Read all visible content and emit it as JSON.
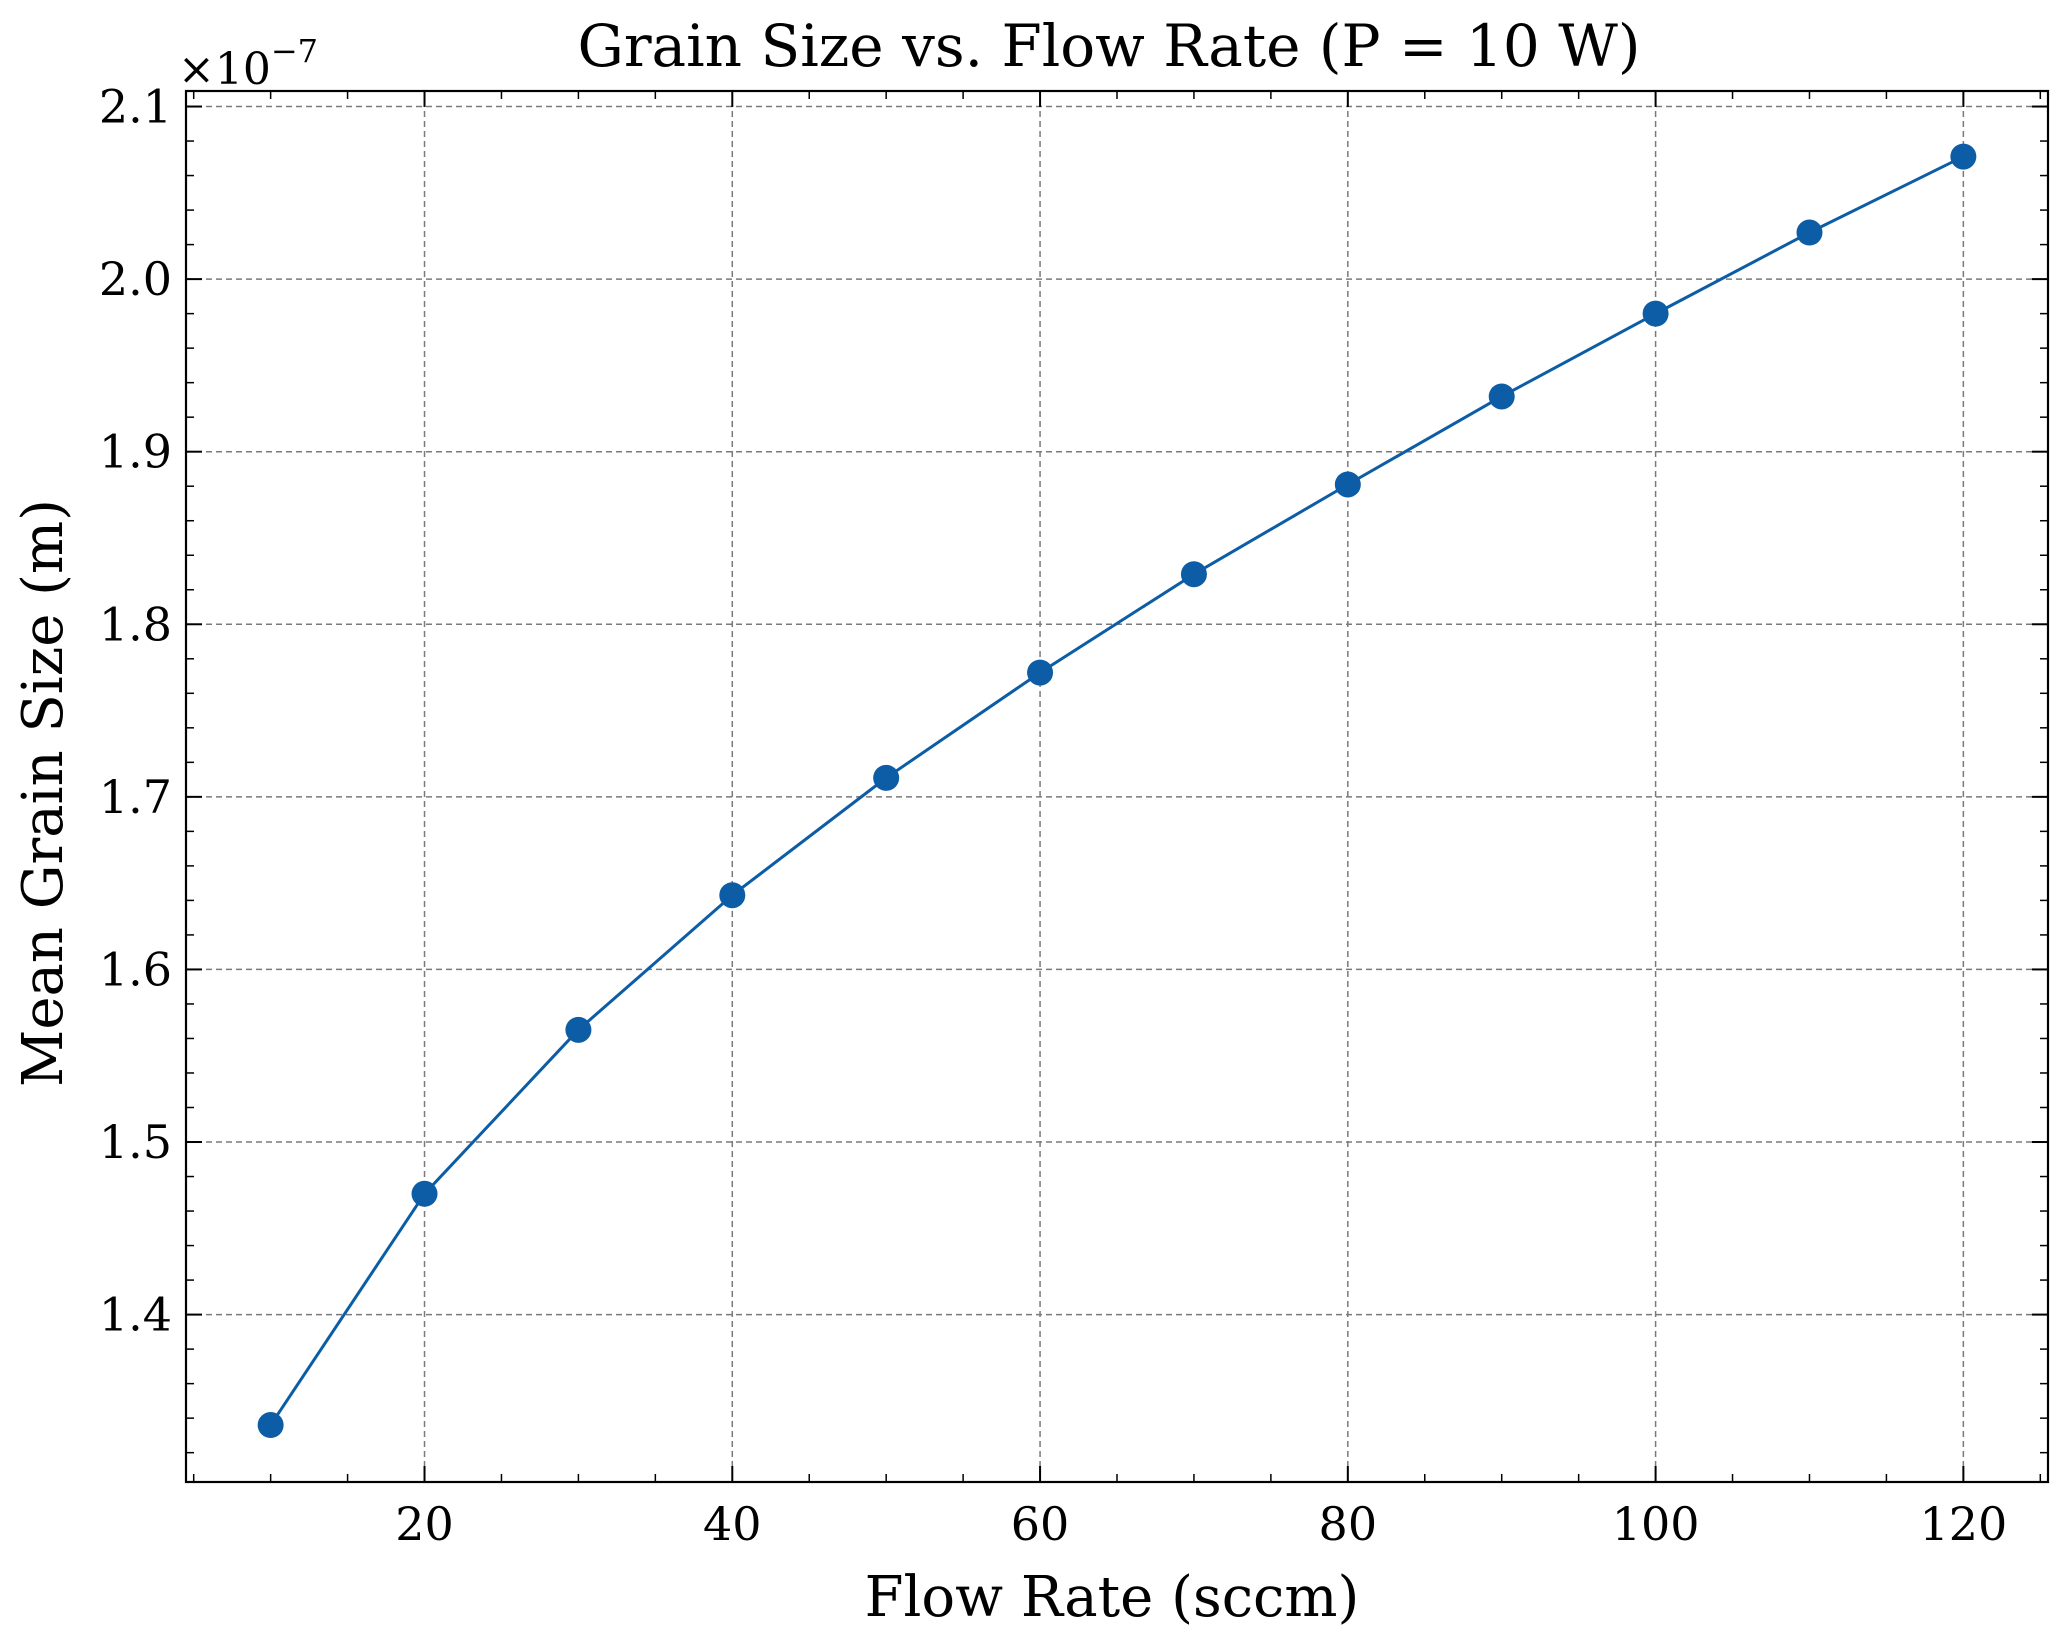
{
  "chart_data": {
    "type": "line",
    "title": "Grain Size vs. Flow Rate (P = 10 W)",
    "xlabel": "Flow Rate (sccm)",
    "ylabel": "Mean Grain Size (m)",
    "y_offset_label": "×10",
    "y_offset_exponent": "−7",
    "y_scale": 1e-07,
    "xlim": [
      4.5,
      125.5
    ],
    "ylim": [
      1.303,
      2.109
    ],
    "x_major_ticks": [
      20,
      40,
      60,
      80,
      100,
      120
    ],
    "x_tick_labels": [
      "20",
      "40",
      "60",
      "80",
      "100",
      "120"
    ],
    "x_minor_step": 5,
    "y_major_ticks": [
      1.4,
      1.5,
      1.6,
      1.7,
      1.8,
      1.9,
      2.0,
      2.1
    ],
    "y_tick_labels": [
      "1.4",
      "1.5",
      "1.6",
      "1.7",
      "1.8",
      "1.9",
      "2.0",
      "2.1"
    ],
    "y_minor_step": 0.02,
    "grid": true,
    "color": "#0C5DA5",
    "series": [
      {
        "x": [
          10,
          20,
          30,
          40,
          50,
          60,
          70,
          80,
          90,
          100,
          110,
          120
        ],
        "y": [
          1.336e-07,
          1.47e-07,
          1.565e-07,
          1.643e-07,
          1.711e-07,
          1.772e-07,
          1.829e-07,
          1.881e-07,
          1.932e-07,
          1.98e-07,
          2.027e-07,
          2.071e-07
        ]
      }
    ]
  }
}
